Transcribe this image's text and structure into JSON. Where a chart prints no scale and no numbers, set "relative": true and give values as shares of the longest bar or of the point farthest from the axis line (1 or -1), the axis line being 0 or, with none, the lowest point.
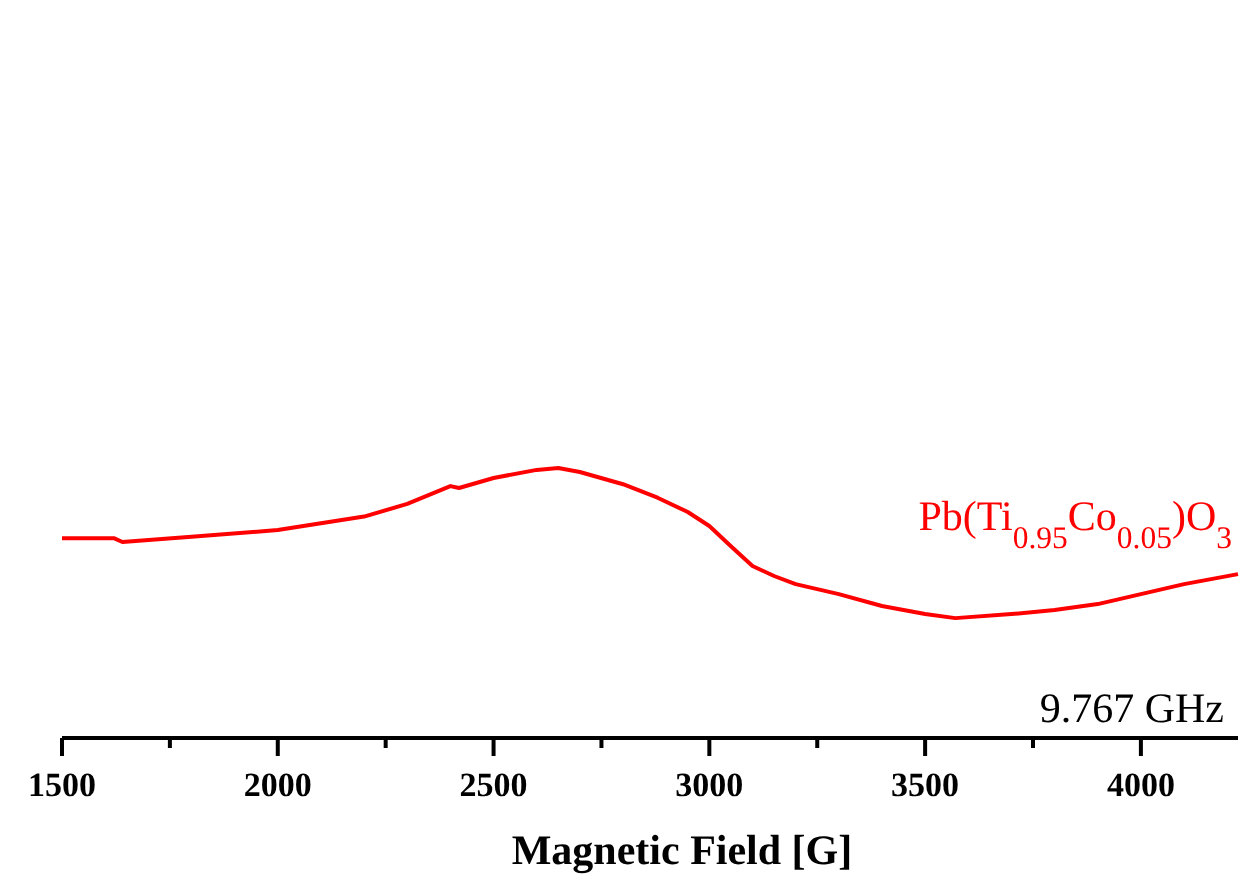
{
  "chart_data": {
    "type": "line",
    "xlabel": "Magnetic Field [G]",
    "relative": true,
    "tick_labels": "x",
    "grid": false,
    "xlim": [
      1500,
      4225
    ],
    "xticks": [
      1500,
      {
        "value": 1750,
        "label": null
      },
      2000,
      {
        "value": 2250,
        "label": null
      },
      2500,
      {
        "value": 2750,
        "label": null
      },
      3000,
      {
        "value": 3250,
        "label": null
      },
      3500,
      {
        "value": 3750,
        "label": null
      },
      4000
    ],
    "annotations": [
      "9.767 GHz"
    ],
    "series": [
      {
        "name": "Pb(Ti$_{0.95}$Co$_{0.05}$)O$_{3}$",
        "color": "#ff0000",
        "x": [
          1500,
          1620,
          1640,
          1800,
          2000,
          2200,
          2300,
          2400,
          2420,
          2500,
          2600,
          2650,
          2700,
          2800,
          2880,
          2950,
          3000,
          3050,
          3100,
          3150,
          3200,
          3300,
          3400,
          3500,
          3570,
          3700,
          3800,
          3900,
          4000,
          4100,
          4225
        ],
        "values": [
          0.74,
          0.74,
          0.726,
          0.745,
          0.77,
          0.82,
          0.867,
          0.933,
          0.926,
          0.963,
          0.993,
          1,
          0.985,
          0.94,
          0.89,
          0.837,
          0.785,
          0.71,
          0.637,
          0.6,
          0.57,
          0.533,
          0.489,
          0.459,
          0.444,
          0.459,
          0.474,
          0.496,
          0.533,
          0.57,
          0.607
        ]
      }
    ]
  }
}
